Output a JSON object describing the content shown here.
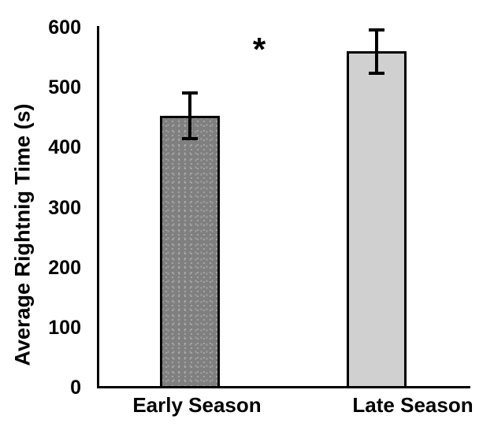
{
  "chart_data": {
    "type": "bar",
    "title": "",
    "ylabel": "Average Rightnig Time (s)",
    "xlabel": "",
    "categories": [
      "Early Season",
      "Late Season"
    ],
    "values": [
      453,
      560
    ],
    "errors": [
      38,
      36
    ],
    "ylim": [
      0,
      600
    ],
    "yticks": [
      0,
      100,
      200,
      300,
      400,
      500,
      600
    ],
    "grid": false,
    "legend": "none",
    "bar_colors": [
      "#7F7F7F",
      "#D0D0D0"
    ],
    "bar_fill_patterns": [
      "speckled-dots",
      "solid"
    ],
    "bar_border_color": "#000000",
    "error_bar_color": "#000000",
    "axis_color": "#000000",
    "text_color": "#000000",
    "background_color": "#FFFFFF",
    "annotations": [
      {
        "text": "*"
      }
    ]
  }
}
